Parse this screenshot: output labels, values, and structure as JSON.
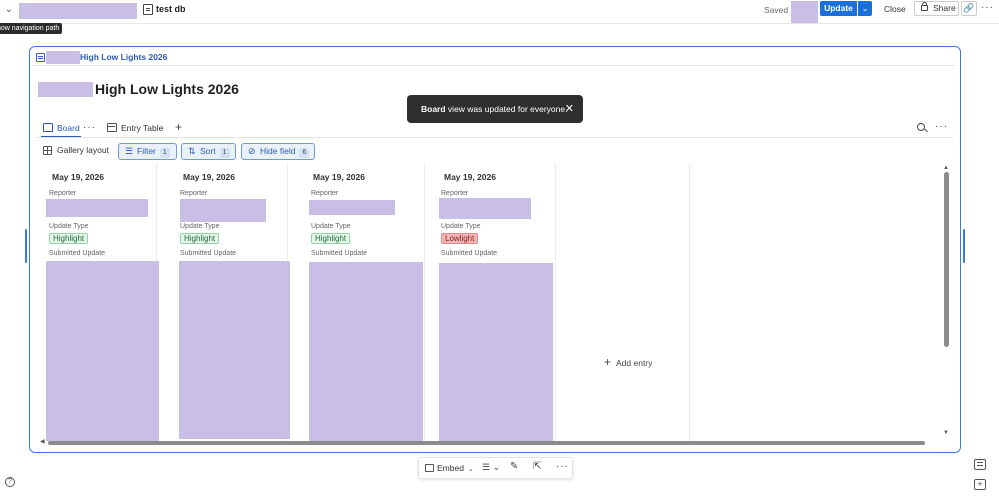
{
  "topbar": {
    "doc_title": "test db",
    "saved": "Saved",
    "update": "Update",
    "close": "Close",
    "share": "Share",
    "tooltip": "how navigation path"
  },
  "frame": {
    "title": "High Low Lights 2026"
  },
  "page": {
    "title": "High Low Lights 2026"
  },
  "toast": {
    "bold": "Board",
    "rest": " view was updated for everyone."
  },
  "views": {
    "tabs": [
      {
        "label": "Board"
      },
      {
        "label": "Entry Table"
      }
    ]
  },
  "toolbar": {
    "gallery": "Gallery layout",
    "filter": "Filter",
    "filter_count": "1",
    "sort": "Sort",
    "sort_count": "1",
    "hide": "Hide field",
    "hide_count": "6"
  },
  "board": {
    "columns": [
      {
        "date": "May 19, 2026",
        "reporter_label": "Reporter",
        "type_label": "Update Type",
        "type": "Highlight",
        "submitted_label": "Submitted Update"
      },
      {
        "date": "May 19, 2026",
        "reporter_label": "Reporter",
        "type_label": "Update Type",
        "type": "Highlight",
        "submitted_label": "Submitted Update"
      },
      {
        "date": "May 19, 2026",
        "reporter_label": "Reporter",
        "type_label": "Update Type",
        "type": "Highlight",
        "submitted_label": "Submitted Update"
      },
      {
        "date": "May 19, 2026",
        "reporter_label": "Reporter",
        "type_label": "Update Type",
        "type": "Lowlight",
        "submitted_label": "Submitted Update"
      }
    ],
    "add_entry": "Add entry"
  },
  "bottombar": {
    "embed": "Embed"
  },
  "colors": {
    "accent": "#1a6fd8",
    "highlight_bg": "#e6f6ea",
    "lowlight_bg": "#f6b6b6",
    "redaction": "#c9bfe6"
  }
}
